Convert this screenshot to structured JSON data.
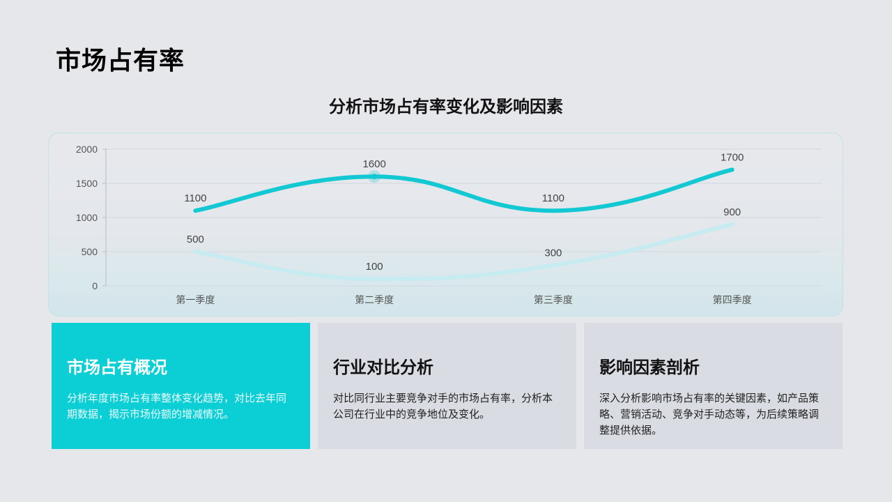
{
  "page": {
    "title": "市场占有率",
    "chart_title": "分析市场占有率变化及影响因素"
  },
  "colors": {
    "primary_line": "#12c8d2",
    "secondary_line": "#c6ebf1",
    "active_card": "#0ccfd6",
    "card_bg": "#d9dce2",
    "page_bg": "#e5e7eb"
  },
  "chart_data": {
    "type": "line",
    "title": "分析市场占有率变化及影响因素",
    "categories": [
      "第一季度",
      "第二季度",
      "第三季度",
      "第四季度"
    ],
    "series": [
      {
        "name": "series1",
        "values": [
          1100,
          1600,
          1100,
          1700
        ],
        "color": "#12c8d2"
      },
      {
        "name": "series2",
        "values": [
          500,
          100,
          300,
          900
        ],
        "color": "#c6ebf1"
      }
    ],
    "yticks": [
      "0",
      "500",
      "1000",
      "1500",
      "2000"
    ],
    "ylim": [
      0,
      2000
    ],
    "xlabel": "",
    "ylabel": "",
    "grid": true,
    "smooth": true,
    "data_labels": true,
    "legend": "none"
  },
  "cards": [
    {
      "title": "市场占有概况",
      "text": "分析年度市场占有率整体变化趋势，对比去年同期数据，揭示市场份额的增减情况。"
    },
    {
      "title": "行业对比分析",
      "text": "对比同行业主要竞争对手的市场占有率，分析本公司在行业中的竞争地位及变化。"
    },
    {
      "title": "影响因素剖析",
      "text": "深入分析影响市场占有率的关键因素，如产品策略、营销活动、竞争对手动态等，为后续策略调整提供依据。"
    }
  ]
}
